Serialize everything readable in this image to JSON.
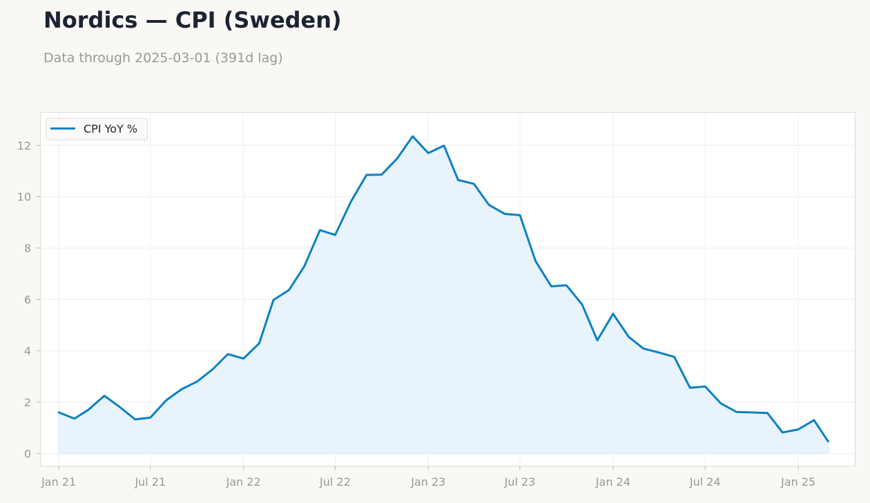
{
  "header": {
    "title": "Nordics — CPI (Sweden)",
    "subtitle": "Data through 2025-03-01 (391d lag)"
  },
  "colors": {
    "line": "#0a80c2",
    "fill": "#e8f3fb",
    "grid": "#ededed",
    "frame": "#dcdad6",
    "background": "#f9f8f5",
    "plot_background": "#ffffff"
  },
  "chart_data": {
    "type": "area",
    "title": "Nordics — CPI (Sweden)",
    "xlabel": "",
    "ylabel": "",
    "x_dates": [
      "2021-01-01",
      "2021-02-01",
      "2021-03-01",
      "2021-04-01",
      "2021-05-01",
      "2021-06-01",
      "2021-07-01",
      "2021-08-01",
      "2021-09-01",
      "2021-10-01",
      "2021-11-01",
      "2021-12-01",
      "2022-01-01",
      "2022-02-01",
      "2022-03-01",
      "2022-04-01",
      "2022-05-01",
      "2022-06-01",
      "2022-07-01",
      "2022-08-01",
      "2022-09-01",
      "2022-10-01",
      "2022-11-01",
      "2022-12-01",
      "2023-01-01",
      "2023-02-01",
      "2023-03-01",
      "2023-04-01",
      "2023-05-01",
      "2023-06-01",
      "2023-07-01",
      "2023-08-01",
      "2023-09-01",
      "2023-10-01",
      "2023-11-01",
      "2023-12-01",
      "2024-01-01",
      "2024-02-01",
      "2024-03-01",
      "2024-04-01",
      "2024-05-01",
      "2024-06-01",
      "2024-07-01",
      "2024-08-01",
      "2024-09-01",
      "2024-10-01",
      "2024-11-01",
      "2024-12-01",
      "2025-01-01",
      "2025-02-01",
      "2025-03-01"
    ],
    "series": [
      {
        "name": "CPI YoY %",
        "values": [
          1.6,
          1.36,
          1.71,
          2.25,
          1.82,
          1.33,
          1.4,
          2.07,
          2.51,
          2.8,
          3.28,
          3.87,
          3.7,
          4.29,
          5.98,
          6.37,
          7.29,
          8.7,
          8.51,
          9.8,
          10.85,
          10.86,
          11.5,
          12.35,
          11.7,
          11.99,
          10.65,
          10.5,
          9.68,
          9.33,
          9.28,
          7.49,
          6.51,
          6.55,
          5.8,
          4.41,
          5.44,
          4.54,
          4.09,
          3.93,
          3.76,
          2.56,
          2.61,
          1.95,
          1.62,
          1.6,
          1.58,
          0.82,
          0.94,
          1.3,
          0.47
        ]
      }
    ],
    "x_ticks": [
      {
        "date": "2021-01-01",
        "label": "Jan 21"
      },
      {
        "date": "2021-07-01",
        "label": "Jul 21"
      },
      {
        "date": "2022-01-01",
        "label": "Jan 22"
      },
      {
        "date": "2022-07-01",
        "label": "Jul 22"
      },
      {
        "date": "2023-01-01",
        "label": "Jan 23"
      },
      {
        "date": "2023-07-01",
        "label": "Jul 23"
      },
      {
        "date": "2024-01-01",
        "label": "Jan 24"
      },
      {
        "date": "2024-07-01",
        "label": "Jul 24"
      },
      {
        "date": "2025-01-01",
        "label": "Jan 25"
      }
    ],
    "y_ticks": [
      0,
      2,
      4,
      6,
      8,
      10,
      12
    ],
    "y_tick_labels": [
      "0",
      "2",
      "4",
      "6",
      "8",
      "10",
      "12"
    ],
    "xlim": [
      "2020-11-25",
      "2025-04-24"
    ],
    "ylim": [
      -0.5,
      13.3
    ],
    "grid": true,
    "legend_position": "top-left"
  }
}
